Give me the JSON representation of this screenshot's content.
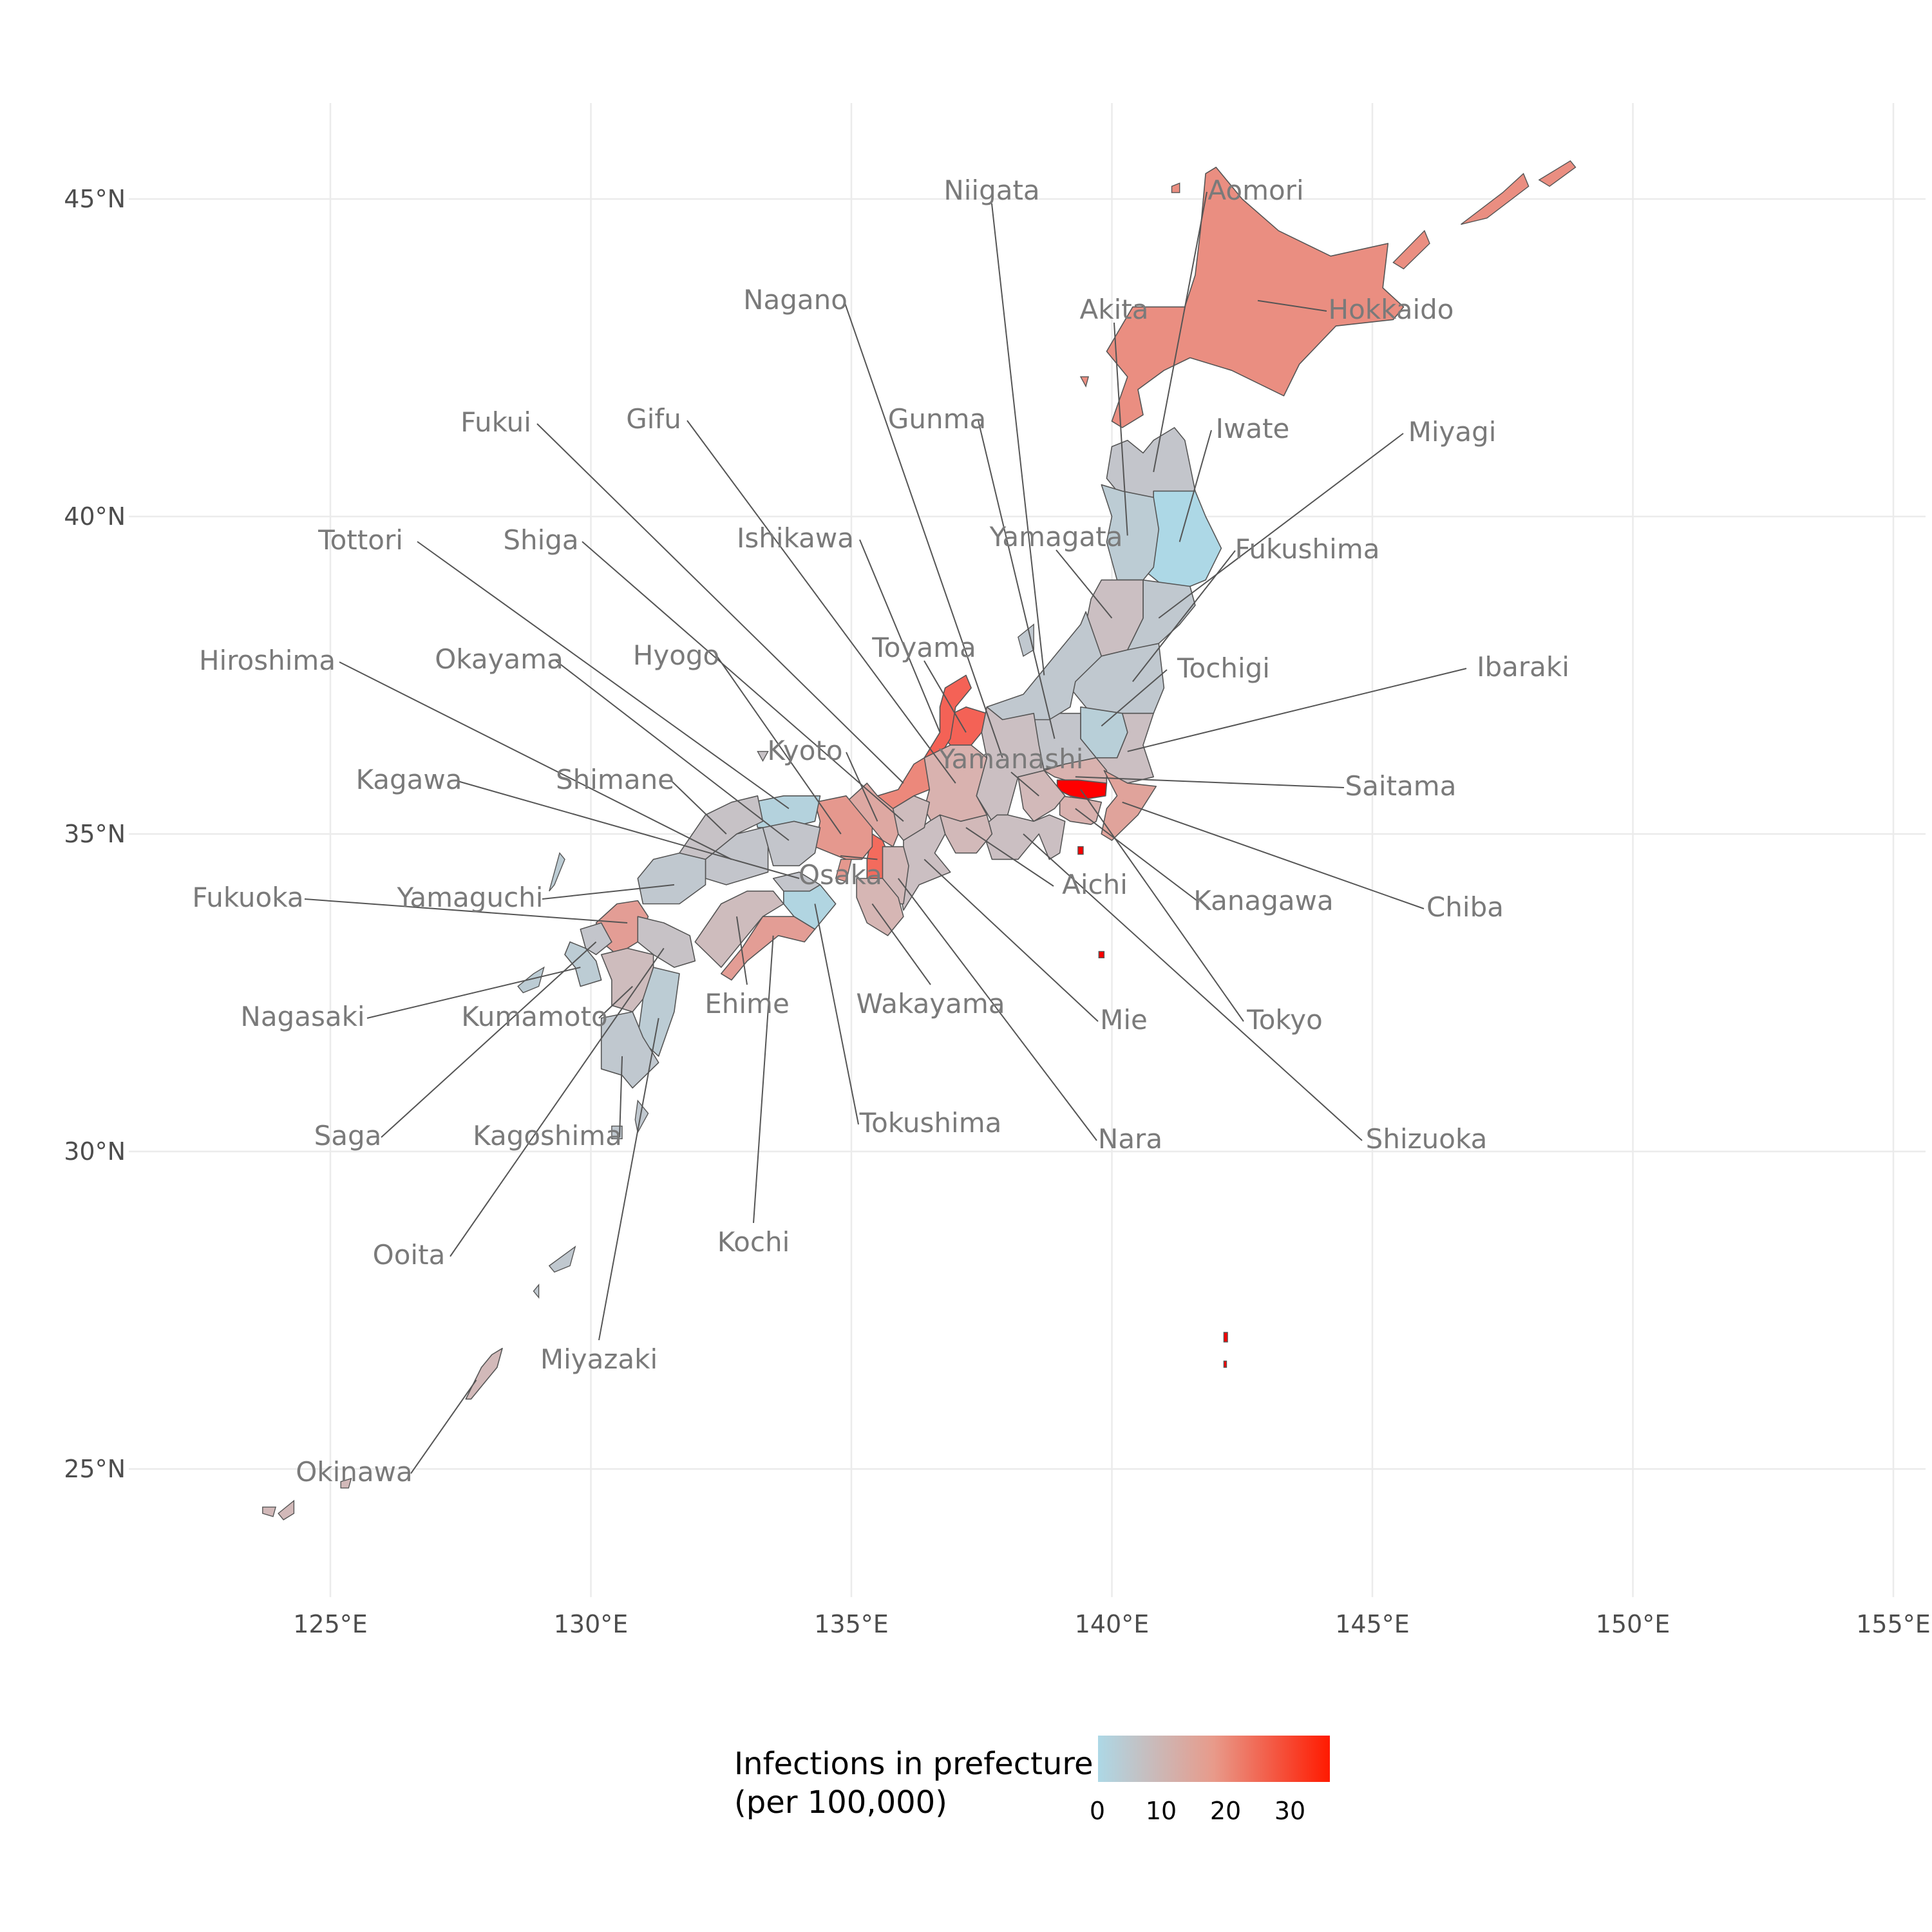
{
  "axes": {
    "x_ticks": [
      "125°E",
      "130°E",
      "135°E",
      "140°E",
      "145°E",
      "150°E",
      "155°E"
    ],
    "y_ticks": [
      "45°N",
      "40°N",
      "35°N",
      "30°N",
      "25°N"
    ]
  },
  "legend": {
    "title_line1": "Infections in prefecture",
    "title_line2": "(per 100,000)",
    "ticks": [
      "0",
      "10",
      "20",
      "30"
    ],
    "position": "bottom",
    "colors": {
      "low": "#add8e6",
      "mid": "#e89a8a",
      "high": "#ff1a00"
    }
  },
  "chart_data": {
    "type": "choropleth",
    "region": "Japan prefectures",
    "x_range": [
      121.5,
      156
    ],
    "y_range": [
      23,
      46
    ],
    "grid": true,
    "color_scale": {
      "min": 0,
      "max": 36,
      "low": "#add8e6",
      "high": "#ff0000"
    },
    "prefectures": [
      {
        "name": "Hokkaido",
        "value": 19,
        "lon": 142.8,
        "lat": 43.4
      },
      {
        "name": "Aomori",
        "value": 6,
        "lon": 140.8,
        "lat": 40.7
      },
      {
        "name": "Iwate",
        "value": 0,
        "lon": 141.3,
        "lat": 39.6
      },
      {
        "name": "Miyagi",
        "value": 5,
        "lon": 140.9,
        "lat": 38.4
      },
      {
        "name": "Akita",
        "value": 4,
        "lon": 140.3,
        "lat": 39.7
      },
      {
        "name": "Yamagata",
        "value": 8,
        "lon": 140.0,
        "lat": 38.4
      },
      {
        "name": "Fukushima",
        "value": 5,
        "lon": 140.4,
        "lat": 37.4
      },
      {
        "name": "Ibaraki",
        "value": 8,
        "lon": 140.3,
        "lat": 36.3
      },
      {
        "name": "Tochigi",
        "value": 3,
        "lon": 139.8,
        "lat": 36.7
      },
      {
        "name": "Gunma",
        "value": 6,
        "lon": 138.9,
        "lat": 36.5
      },
      {
        "name": "Saitama",
        "value": 12,
        "lon": 139.3,
        "lat": 35.9
      },
      {
        "name": "Chiba",
        "value": 15,
        "lon": 140.2,
        "lat": 35.5
      },
      {
        "name": "Tokyo",
        "value": 36,
        "lon": 139.4,
        "lat": 35.7
      },
      {
        "name": "Kanagawa",
        "value": 12,
        "lon": 139.3,
        "lat": 35.4
      },
      {
        "name": "Niigata",
        "value": 5,
        "lon": 138.7,
        "lat": 37.5
      },
      {
        "name": "Toyama",
        "value": 25,
        "lon": 137.2,
        "lat": 36.6
      },
      {
        "name": "Ishikawa",
        "value": 25,
        "lon": 136.7,
        "lat": 36.6
      },
      {
        "name": "Fukui",
        "value": 20,
        "lon": 136.0,
        "lat": 35.8
      },
      {
        "name": "Yamanashi",
        "value": 10,
        "lon": 138.6,
        "lat": 35.6
      },
      {
        "name": "Nagano",
        "value": 8,
        "lon": 137.9,
        "lat": 36.2
      },
      {
        "name": "Gifu",
        "value": 12,
        "lon": 137.0,
        "lat": 35.8
      },
      {
        "name": "Shizuoka",
        "value": 8,
        "lon": 138.3,
        "lat": 35.0
      },
      {
        "name": "Aichi",
        "value": 10,
        "lon": 137.2,
        "lat": 35.1
      },
      {
        "name": "Mie",
        "value": 8,
        "lon": 136.4,
        "lat": 34.6
      },
      {
        "name": "Shiga",
        "value": 9,
        "lon": 136.0,
        "lat": 35.2
      },
      {
        "name": "Kyoto",
        "value": 14,
        "lon": 135.5,
        "lat": 35.2
      },
      {
        "name": "Osaka",
        "value": 24,
        "lon": 135.5,
        "lat": 34.6
      },
      {
        "name": "Hyogo",
        "value": 17,
        "lon": 134.8,
        "lat": 35.0
      },
      {
        "name": "Nara",
        "value": 10,
        "lon": 135.9,
        "lat": 34.3
      },
      {
        "name": "Wakayama",
        "value": 11,
        "lon": 135.4,
        "lat": 33.9
      },
      {
        "name": "Tottori",
        "value": 2,
        "lon": 133.8,
        "lat": 35.4
      },
      {
        "name": "Shimane",
        "value": 7,
        "lon": 132.6,
        "lat": 35.0
      },
      {
        "name": "Okayama",
        "value": 6,
        "lon": 133.8,
        "lat": 34.9
      },
      {
        "name": "Hiroshima",
        "value": 6,
        "lon": 132.7,
        "lat": 34.6
      },
      {
        "name": "Yamaguchi",
        "value": 5,
        "lon": 131.6,
        "lat": 34.2
      },
      {
        "name": "Tokushima",
        "value": 1,
        "lon": 134.3,
        "lat": 33.9
      },
      {
        "name": "Kagawa",
        "value": 6,
        "lon": 134.0,
        "lat": 34.3
      },
      {
        "name": "Ehime",
        "value": 9,
        "lon": 132.8,
        "lat": 33.7
      },
      {
        "name": "Kochi",
        "value": 16,
        "lon": 133.5,
        "lat": 33.4
      },
      {
        "name": "Fukuoka",
        "value": 16,
        "lon": 130.7,
        "lat": 33.6
      },
      {
        "name": "Saga",
        "value": 6,
        "lon": 130.1,
        "lat": 33.3
      },
      {
        "name": "Nagasaki",
        "value": 4,
        "lon": 129.8,
        "lat": 32.9
      },
      {
        "name": "Kumamoto",
        "value": 9,
        "lon": 130.8,
        "lat": 32.6
      },
      {
        "name": "Ooita",
        "value": 7,
        "lon": 131.4,
        "lat": 33.2
      },
      {
        "name": "Miyazaki",
        "value": 4,
        "lon": 131.3,
        "lat": 32.1
      },
      {
        "name": "Kagoshima",
        "value": 5,
        "lon": 130.6,
        "lat": 31.5
      },
      {
        "name": "Okinawa",
        "value": 10,
        "lon": 127.8,
        "lat": 26.4
      }
    ]
  }
}
